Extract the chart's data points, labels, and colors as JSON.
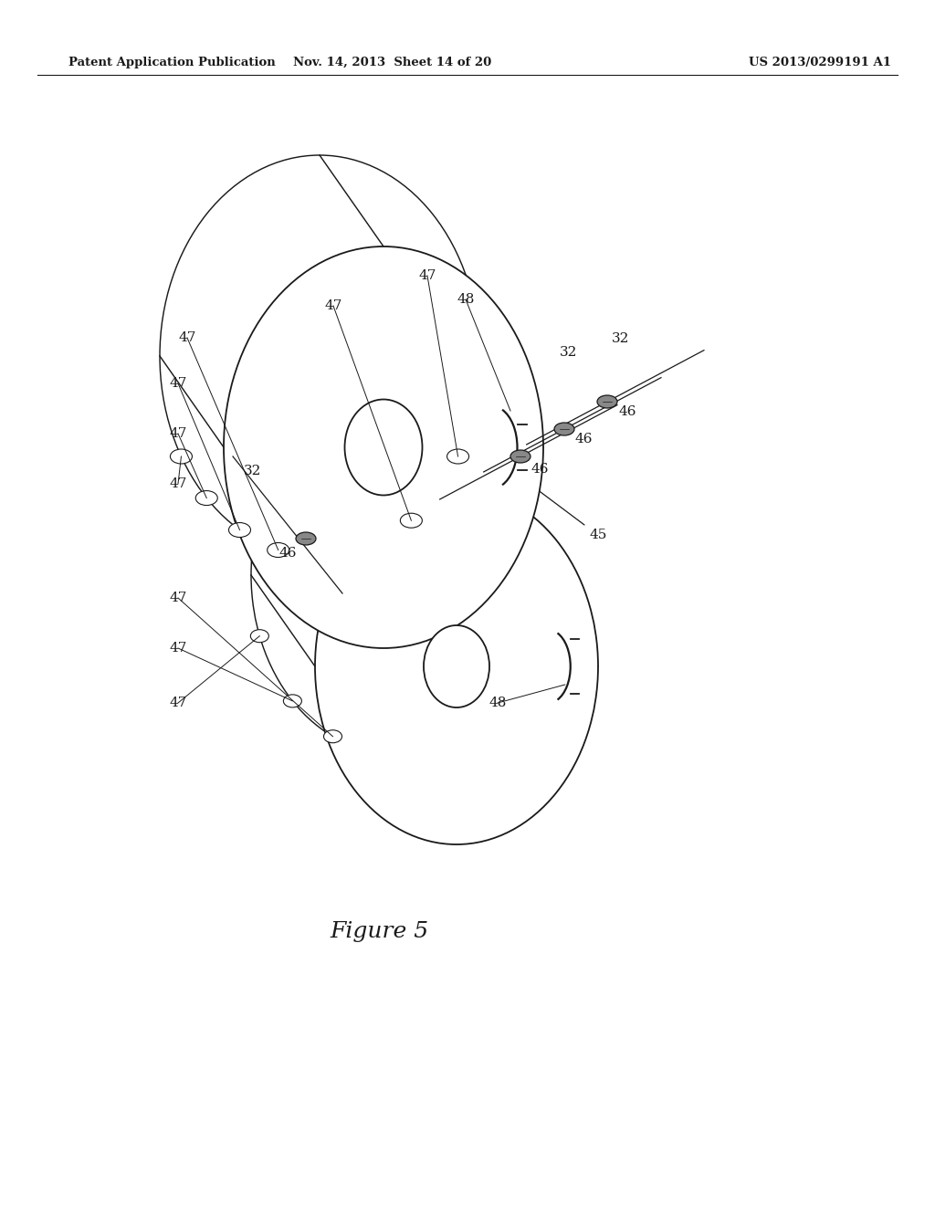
{
  "bg_color": "#ffffff",
  "line_color": "#1a1a1a",
  "header_left": "Patent Application Publication",
  "header_mid": "Nov. 14, 2013  Sheet 14 of 20",
  "header_right": "US 2013/0299191 A1",
  "figure_label": "Figure 5"
}
